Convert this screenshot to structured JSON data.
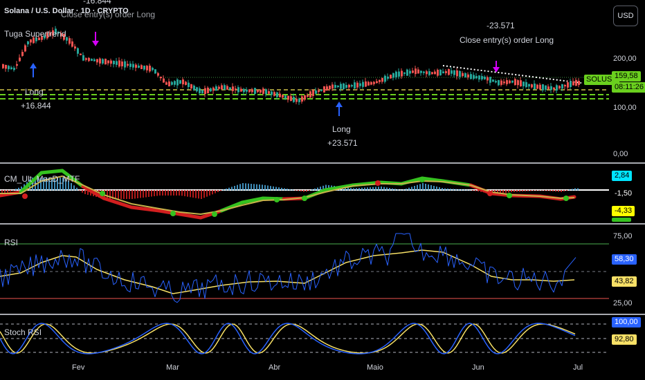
{
  "header": {
    "symbol_title": "Solana / U.S. Dollar · 1D · CRYPTO",
    "strategy_name": "Tuga Supertrend",
    "currency_button": "USD"
  },
  "annotations": {
    "top_left_value": "-16.844",
    "top_left_label": "Close entry(s) order Long",
    "long1_label": "Long",
    "long1_value": "+16.844",
    "long2_label": "Long",
    "long2_value": "+23.571",
    "close2_value": "-23.571",
    "close2_label": "Close entry(s) order Long"
  },
  "price_axis": {
    "labels": [
      "200,00",
      "100,00",
      "0,00"
    ],
    "symbol_tag": "SOLUSD",
    "price_tag": "159,58",
    "countdown_tag": "08:11:26"
  },
  "macd": {
    "name": "CM_Ult_MacD_MTF",
    "labels": [
      "2,84",
      "-1,50",
      "-4,33"
    ]
  },
  "rsi": {
    "name": "RSI",
    "levels": [
      "75,00",
      "25,00"
    ],
    "value_tag": "58,30",
    "ma_tag": "43,82"
  },
  "stoch": {
    "name": "Stoch RSI",
    "k_tag": "100,00",
    "d_tag": "92,80"
  },
  "time_axis": [
    "Fev",
    "Mar",
    "Abr",
    "Maio",
    "Jun",
    "Jul"
  ],
  "colors": {
    "up": "#26a69a",
    "down": "#ef5350",
    "price_tag_bg": "#6ad01e",
    "rsi_line": "#2962ff",
    "rsi_ma": "#f7e066",
    "macd_up": "#35c21f",
    "macd_down": "#d21f1f",
    "stoch_k": "#2962ff",
    "stoch_d": "#f7e066"
  }
}
